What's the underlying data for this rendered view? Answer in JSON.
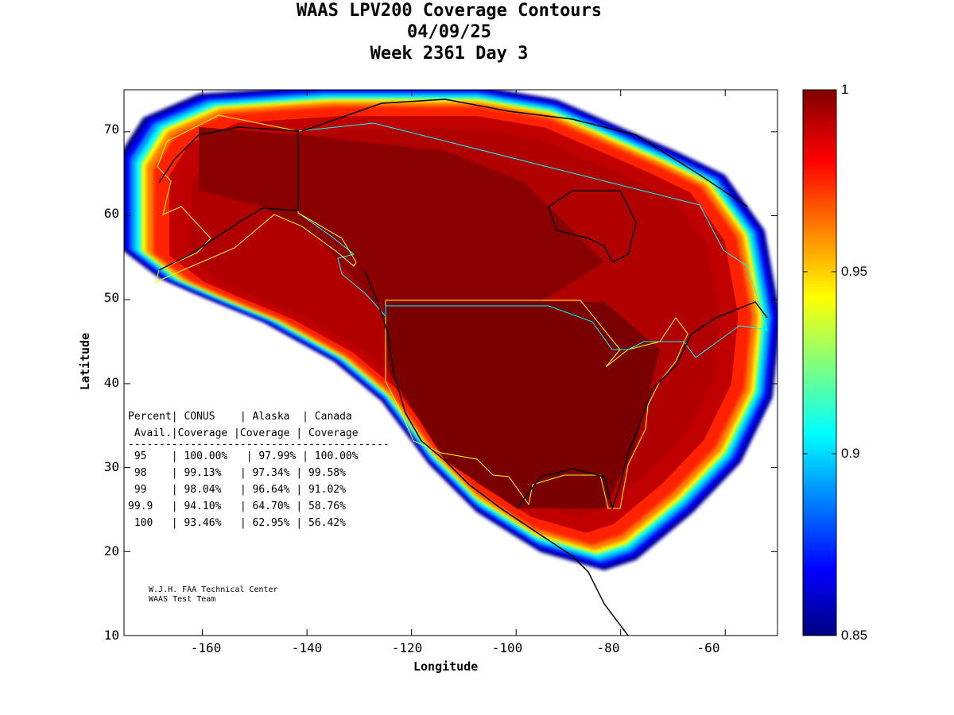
{
  "title": {
    "line1": "WAAS LPV200 Coverage Contours",
    "line2": "04/09/25",
    "line3": "Week 2361 Day 3"
  },
  "axes": {
    "xlabel": "Longitude",
    "ylabel": "Latitude",
    "xlim": [
      -175,
      -50
    ],
    "ylim": [
      10,
      75
    ],
    "xticks": [
      "-160",
      "-140",
      "-120",
      "-100",
      "-80",
      "-60"
    ],
    "xtick_values": [
      -160,
      -140,
      -120,
      -100,
      -80,
      -60
    ],
    "yticks": [
      "70",
      "60",
      "50",
      "40",
      "30",
      "20",
      "10"
    ],
    "ytick_values": [
      70,
      60,
      50,
      40,
      30,
      20,
      10
    ]
  },
  "colorbar": {
    "range": [
      0.85,
      1
    ],
    "ticks": [
      "1",
      "0.95",
      "0.9",
      "0.85"
    ],
    "tick_values": [
      1,
      0.95,
      0.9,
      0.85
    ],
    "colors": [
      "#000080",
      "#0000ff",
      "#0080ff",
      "#00ffff",
      "#80ff80",
      "#ffff00",
      "#ff8000",
      "#ff0000",
      "#800000"
    ]
  },
  "table": {
    "header1": "Percent| CONUS    | Alaska  | Canada",
    "header2": " Avail.|Coverage |Coverage | Coverage",
    "separator": "------------------------------------------",
    "rows": [
      " 95    | 100.00%   | 97.99% | 100.00%",
      " 98    | 99.13%   | 97.34% | 99.58%",
      " 99    | 98.04%   | 96.64% | 91.02%",
      "99.9   | 94.10%   | 64.70% | 58.76%",
      " 100   | 93.46%   | 62.95% | 56.42%"
    ]
  },
  "credit": {
    "line1": "W.J.H. FAA Technical Center",
    "line2": "WAAS Test Team"
  }
}
